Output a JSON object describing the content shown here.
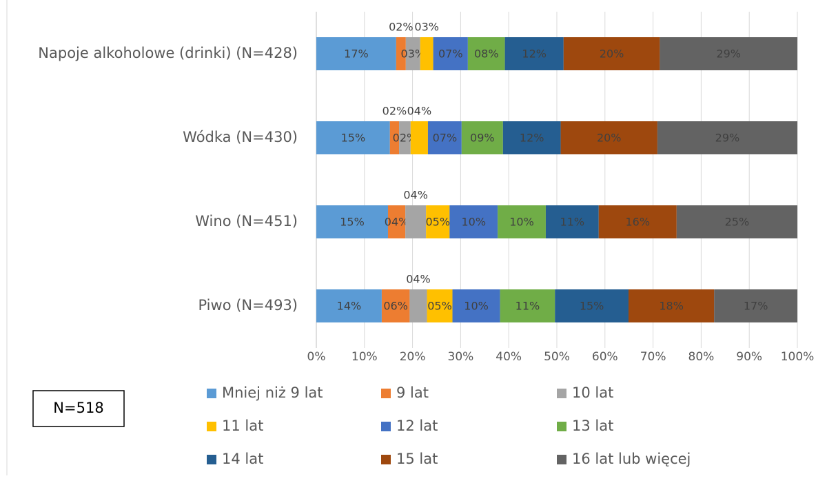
{
  "chart_data": {
    "type": "stacked-bar-horizontal",
    "categories": [
      "Napoje alkoholowe (drinki) (N=428)",
      "Wódka (N=430)",
      "Wino (N=451)",
      "Piwo (N=493)"
    ],
    "series": [
      {
        "name": "Mniej niż 9 lat",
        "color": "#5b9bd5",
        "values": [
          16.6,
          15.3,
          14.9,
          13.6
        ],
        "value_labels": [
          "17%",
          "15%",
          "15%",
          "14%"
        ]
      },
      {
        "name": "9 lat",
        "color": "#ed7d31",
        "values": [
          2.0,
          1.9,
          3.6,
          5.8
        ],
        "value_labels": [
          "02%",
          "02%",
          "04%",
          "06%"
        ]
      },
      {
        "name": "10 lat",
        "color": "#a5a5a5",
        "values": [
          3.0,
          2.4,
          4.3,
          3.6
        ],
        "value_labels": [
          "03%",
          "02%",
          "04%",
          "04%"
        ]
      },
      {
        "name": "11 lat",
        "color": "#ffc000",
        "values": [
          2.7,
          3.6,
          4.9,
          5.3
        ],
        "value_labels": [
          "03%",
          "04%",
          "05%",
          "05%"
        ]
      },
      {
        "name": "12 lat",
        "color": "#4472c4",
        "values": [
          7.2,
          7.0,
          10.0,
          9.9
        ],
        "value_labels": [
          "07%",
          "07%",
          "10%",
          "10%"
        ]
      },
      {
        "name": "13 lat",
        "color": "#70ad47",
        "values": [
          7.7,
          8.6,
          10.0,
          11.4
        ],
        "value_labels": [
          "08%",
          "09%",
          "10%",
          "11%"
        ]
      },
      {
        "name": "14 lat",
        "color": "#255e91",
        "values": [
          12.2,
          12.0,
          11.0,
          15.3
        ],
        "value_labels": [
          "12%",
          "12%",
          "11%",
          "15%"
        ]
      },
      {
        "name": "15 lat",
        "color": "#9e480e",
        "values": [
          20.0,
          20.1,
          16.2,
          17.8
        ],
        "value_labels": [
          "20%",
          "20%",
          "16%",
          "18%"
        ]
      },
      {
        "name": "16 lat lub więcej",
        "color": "#636363",
        "values": [
          28.6,
          29.1,
          25.1,
          17.3
        ],
        "value_labels": [
          "29%",
          "29%",
          "25%",
          "17%"
        ]
      }
    ],
    "xlim": [
      0,
      100
    ],
    "xticks": [
      {
        "value": 0,
        "label": "0%"
      },
      {
        "value": 10,
        "label": "10%"
      },
      {
        "value": 20,
        "label": "20%"
      },
      {
        "value": 30,
        "label": "30%"
      },
      {
        "value": 40,
        "label": "40%"
      },
      {
        "value": 50,
        "label": "50%"
      },
      {
        "value": 60,
        "label": "60%"
      },
      {
        "value": 70,
        "label": "70%"
      },
      {
        "value": 80,
        "label": "80%"
      },
      {
        "value": 90,
        "label": "90%"
      },
      {
        "value": 100,
        "label": "100%"
      }
    ],
    "grid": true,
    "annotation": "N=518"
  }
}
